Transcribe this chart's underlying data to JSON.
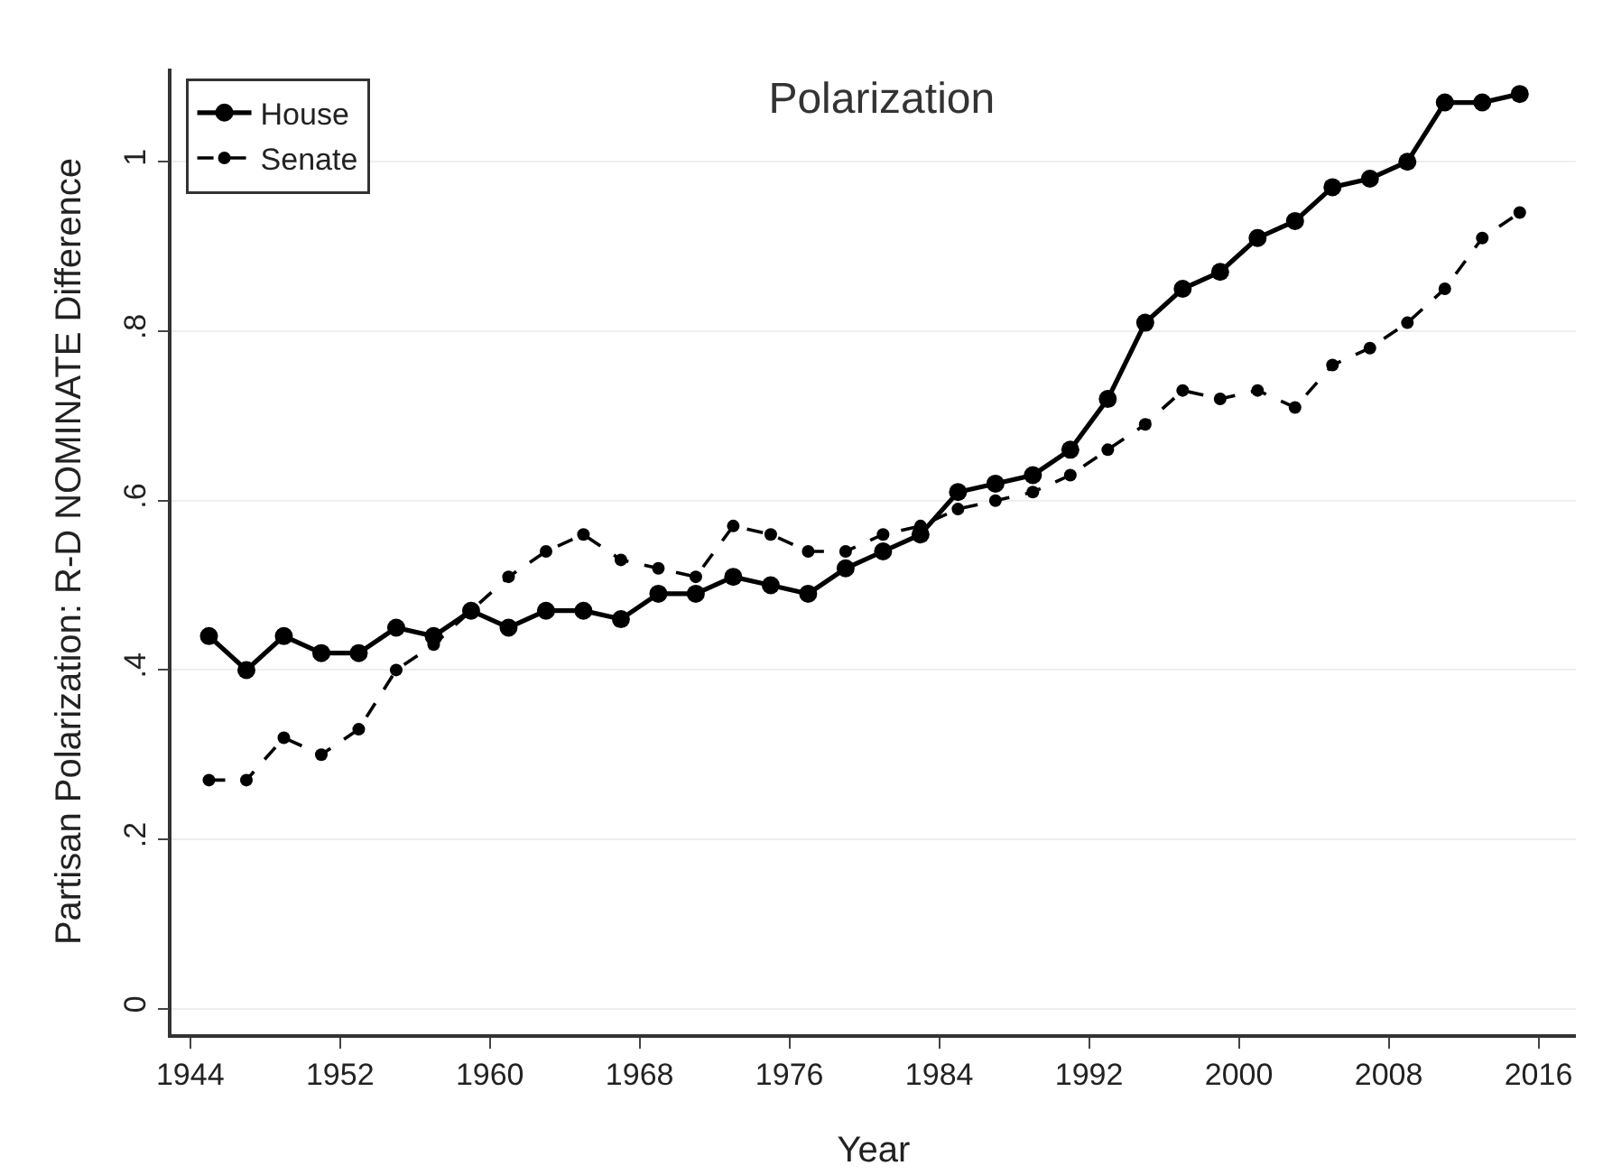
{
  "chart_data": {
    "type": "line",
    "title": "Polarization",
    "xlabel": "Year",
    "ylabel": "Partisan Polarization: R-D NOMINATE Difference",
    "x": [
      1945,
      1947,
      1949,
      1951,
      1953,
      1955,
      1957,
      1959,
      1961,
      1963,
      1965,
      1967,
      1969,
      1971,
      1973,
      1975,
      1977,
      1979,
      1981,
      1983,
      1985,
      1987,
      1989,
      1991,
      1993,
      1995,
      1997,
      1999,
      2001,
      2003,
      2005,
      2007,
      2009,
      2011,
      2013,
      2015
    ],
    "series": [
      {
        "name": "House",
        "color": "#000000",
        "line_style": "solid",
        "values": [
          0.44,
          0.4,
          0.44,
          0.42,
          0.42,
          0.45,
          0.44,
          0.47,
          0.45,
          0.47,
          0.47,
          0.46,
          0.49,
          0.49,
          0.51,
          0.5,
          0.49,
          0.52,
          0.54,
          0.56,
          0.61,
          0.62,
          0.63,
          0.66,
          0.72,
          0.81,
          0.85,
          0.87,
          0.91,
          0.93,
          0.97,
          0.98,
          1.0,
          1.07,
          1.07,
          1.08
        ]
      },
      {
        "name": "Senate",
        "color": "#000000",
        "line_style": "dashed",
        "values": [
          0.27,
          0.27,
          0.32,
          0.3,
          0.33,
          0.4,
          0.43,
          0.47,
          0.51,
          0.54,
          0.56,
          0.53,
          0.52,
          0.51,
          0.57,
          0.56,
          0.54,
          0.54,
          0.56,
          0.57,
          0.59,
          0.6,
          0.61,
          0.63,
          0.66,
          0.69,
          0.73,
          0.72,
          0.73,
          0.71,
          0.76,
          0.78,
          0.81,
          0.85,
          0.91,
          0.94
        ]
      }
    ],
    "xlim": [
      1943,
      2018
    ],
    "xticks": [
      1944,
      1952,
      1960,
      1968,
      1976,
      1984,
      1992,
      2000,
      2008,
      2016
    ],
    "ylim": [
      -0.03,
      1.11
    ],
    "yticks": [
      0,
      {
        "value": 0.2,
        "label": ".2"
      },
      {
        "value": 0.4,
        "label": ".4"
      },
      {
        "value": 0.6,
        "label": ".6"
      },
      {
        "value": 0.8,
        "label": ".8"
      },
      1
    ],
    "grid": "y",
    "legend": "top left",
    "marker": "circle"
  }
}
